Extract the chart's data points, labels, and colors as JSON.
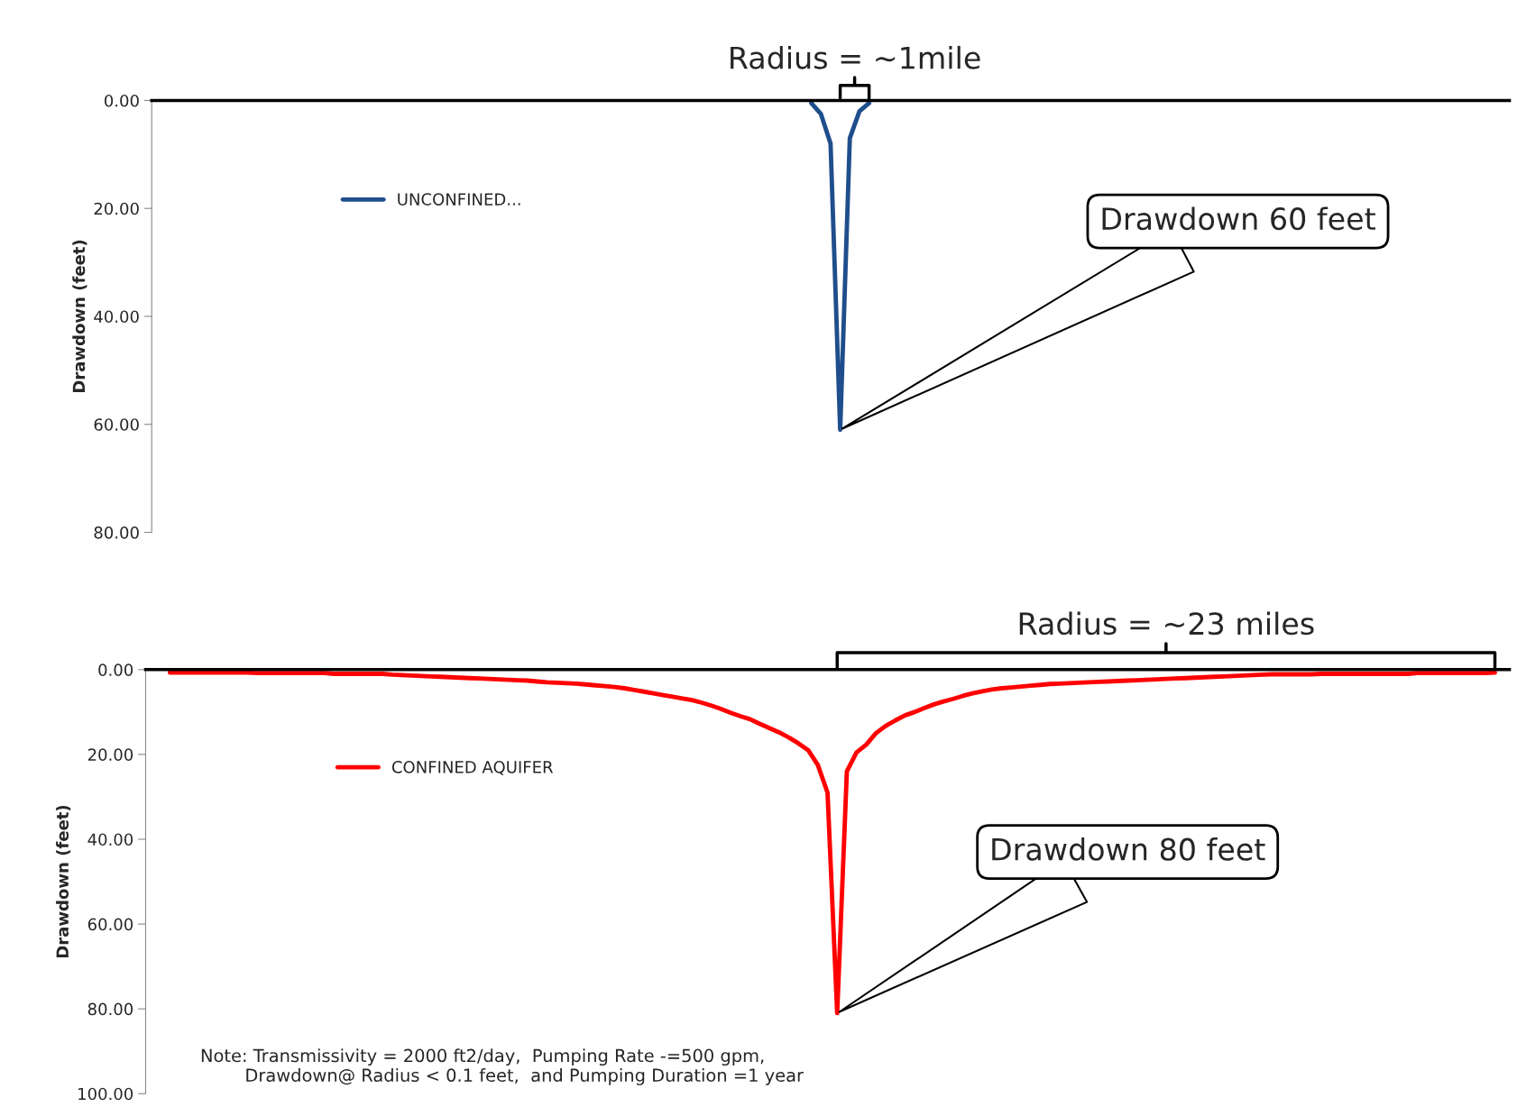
{
  "chart_data": [
    {
      "type": "line",
      "ylabel": "Drawdown (feet)",
      "categories": [
        null,
        null,
        null,
        null,
        null,
        null,
        null,
        null,
        null,
        null,
        null,
        null,
        null,
        null,
        null,
        null,
        null,
        null,
        null,
        null,
        null,
        null,
        null,
        null,
        null,
        null,
        null,
        null,
        null,
        null,
        null,
        null,
        null,
        null,
        null,
        null,
        null,
        null,
        null,
        null,
        null,
        null,
        null,
        null,
        null,
        null,
        null,
        null,
        null,
        null,
        null,
        null,
        null,
        null,
        null,
        null,
        null,
        null,
        null,
        null,
        null,
        null,
        null,
        null,
        null,
        null,
        null,
        null,
        null,
        null,
        null,
        null,
        null,
        null,
        null,
        null,
        null,
        null,
        null,
        null,
        null,
        null,
        null,
        null,
        null,
        null,
        null,
        null,
        null,
        null,
        null,
        null,
        null,
        null,
        null,
        null,
        null,
        null,
        null,
        null,
        null,
        null,
        null,
        null,
        null,
        null,
        null,
        null,
        null,
        null,
        null,
        null,
        null,
        null,
        null,
        null,
        null,
        null,
        null,
        null,
        null,
        null,
        null,
        null,
        null,
        null,
        null,
        null,
        null,
        null,
        null,
        null,
        null,
        null,
        null,
        null,
        null,
        null,
        null,
        null,
        null
      ],
      "series": [
        {
          "name": "UNCONFINED...",
          "color": "#1f4e8c",
          "values": [
            null,
            null,
            null,
            null,
            null,
            null,
            null,
            null,
            null,
            null,
            null,
            null,
            null,
            null,
            null,
            null,
            null,
            null,
            null,
            null,
            null,
            null,
            null,
            null,
            null,
            null,
            null,
            null,
            null,
            null,
            null,
            null,
            null,
            null,
            null,
            null,
            null,
            null,
            null,
            null,
            null,
            null,
            null,
            null,
            null,
            null,
            null,
            null,
            null,
            null,
            null,
            null,
            null,
            null,
            null,
            null,
            null,
            null,
            null,
            null,
            null,
            null,
            null,
            null,
            null,
            null,
            null,
            null,
            0.5,
            2.5,
            8,
            61,
            7,
            2,
            0.5,
            null,
            null,
            null,
            null,
            null,
            null,
            null,
            null,
            null,
            null,
            null,
            null,
            null,
            null,
            null,
            null,
            null,
            null,
            null,
            null,
            null,
            null,
            null,
            null,
            null,
            null,
            null,
            null,
            null,
            null,
            null,
            null,
            null,
            null,
            null,
            null,
            null,
            null,
            null,
            null,
            null,
            null,
            null,
            null,
            null,
            null,
            null,
            null,
            null,
            null,
            null,
            null,
            null,
            null,
            null,
            null,
            null,
            null,
            null,
            null,
            null,
            null,
            null,
            null,
            null,
            null
          ]
        }
      ],
      "ylim": [
        80,
        0
      ],
      "yticks": [
        {
          "value": 0,
          "label": "0.00"
        },
        {
          "value": 20,
          "label": "20.00"
        },
        {
          "value": 40,
          "label": "40.00"
        },
        {
          "value": 60,
          "label": "60.00"
        },
        {
          "value": 80,
          "label": "80.00"
        }
      ],
      "legend": "top left",
      "annotations": [
        "Radius = ~1mile",
        "Drawdown 60 feet"
      ]
    },
    {
      "type": "line",
      "ylabel": "Drawdown (feet)",
      "categories": [
        null,
        null,
        null,
        null,
        null,
        null,
        null,
        null,
        null,
        null,
        null,
        null,
        null,
        null,
        null,
        null,
        null,
        null,
        null,
        null,
        null,
        null,
        null,
        null,
        null,
        null,
        null,
        null,
        null,
        null,
        null,
        null,
        null,
        null,
        null,
        null,
        null,
        null,
        null,
        null,
        null,
        null,
        null,
        null,
        null,
        null,
        null,
        null,
        null,
        null,
        null,
        null,
        null,
        null,
        null,
        null,
        null,
        null,
        null,
        null,
        null,
        null,
        null,
        null,
        null,
        null,
        null,
        null,
        null,
        null,
        null,
        null,
        null,
        null,
        null,
        null,
        null,
        null,
        null,
        null,
        null,
        null,
        null,
        null,
        null,
        null,
        null,
        null,
        null,
        null,
        null,
        null,
        null,
        null,
        null,
        null,
        null,
        null,
        null,
        null,
        null,
        null,
        null,
        null,
        null,
        null,
        null,
        null,
        null,
        null,
        null,
        null,
        null,
        null,
        null,
        null,
        null,
        null,
        null,
        null,
        null,
        null,
        null,
        null,
        null,
        null,
        null,
        null,
        null,
        null,
        null,
        null,
        null,
        null,
        null,
        null,
        null,
        null,
        null,
        null,
        null
      ],
      "series": [
        {
          "name": "CONFINED AQUIFER",
          "color": "#ff0000",
          "values": [
            null,
            null,
            0.7,
            0.7,
            0.7,
            0.7,
            0.7,
            0.7,
            0.7,
            0.7,
            0.7,
            0.8,
            0.8,
            0.8,
            0.8,
            0.8,
            0.8,
            0.8,
            0.8,
            1.0,
            1.0,
            1.0,
            1.0,
            1.0,
            1.0,
            1.2,
            1.3,
            1.4,
            1.5,
            1.6,
            1.7,
            1.8,
            1.9,
            2.0,
            2.1,
            2.2,
            2.3,
            2.4,
            2.5,
            2.6,
            2.8,
            3.0,
            3.1,
            3.2,
            3.3,
            3.5,
            3.7,
            3.9,
            4.1,
            4.4,
            4.8,
            5.2,
            5.6,
            6.0,
            6.4,
            6.8,
            7.2,
            7.8,
            8.5,
            9.3,
            10.2,
            11.0,
            11.7,
            12.8,
            13.8,
            14.8,
            16.0,
            17.4,
            19.0,
            22.5,
            29,
            81,
            24,
            19.5,
            17.7,
            15,
            13.3,
            12,
            10.8,
            10,
            9.1,
            8.2,
            7.5,
            6.9,
            6.2,
            5.6,
            5.1,
            4.7,
            4.4,
            4.2,
            4.0,
            3.8,
            3.6,
            3.4,
            3.3,
            3.2,
            3.1,
            3.0,
            2.9,
            2.8,
            2.7,
            2.6,
            2.5,
            2.4,
            2.3,
            2.2,
            2.1,
            2.0,
            1.9,
            1.8,
            1.7,
            1.6,
            1.5,
            1.4,
            1.3,
            1.2,
            1.1,
            1.1,
            1.1,
            1.1,
            1.1,
            1.0,
            1.0,
            1.0,
            1.0,
            1.0,
            1.0,
            1.0,
            1.0,
            1.0,
            1.0,
            0.8,
            0.8,
            0.8,
            0.8,
            0.8,
            0.8,
            0.8,
            0.8,
            0.7,
            null
          ]
        }
      ],
      "ylim": [
        100,
        0
      ],
      "yticks": [
        {
          "value": 0,
          "label": "0.00"
        },
        {
          "value": 20,
          "label": "20.00"
        },
        {
          "value": 40,
          "label": "40.00"
        },
        {
          "value": 60,
          "label": "60.00"
        },
        {
          "value": 80,
          "label": "80.00"
        },
        {
          "value": 100,
          "label": "100.00"
        }
      ],
      "legend": "top left",
      "annotations": [
        "Radius = ~23 miles",
        "Drawdown 80 feet",
        "Note: Transmissivity = 2000 ft2/day,  Pumping Rate -=500 gpm,\n        Drawdown@ Radius < 0.1 feet,  and Pumping Duration =1 year"
      ]
    }
  ]
}
